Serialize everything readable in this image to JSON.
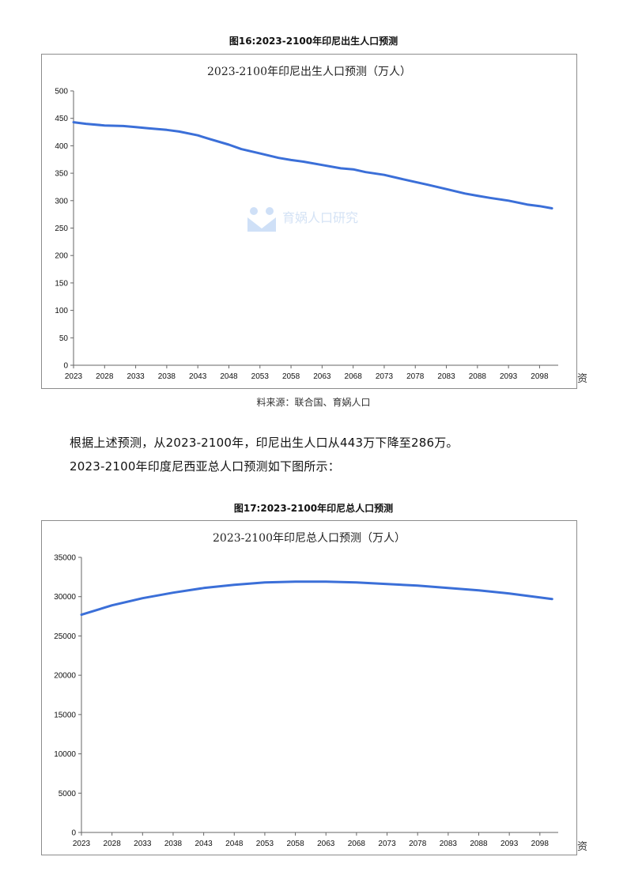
{
  "figure16": {
    "caption": "图16:2023-2100年印尼出生人口预测",
    "side_char": "资",
    "watermark_text": "育娲人口研究"
  },
  "source": "料来源：联合国、育娲人口",
  "paragraph": {
    "line1": "根据上述预测，从2023-2100年，印尼出生人口从443万下降至286万。",
    "line2": "2023-2100年印度尼西亚总人口预测如下图所示："
  },
  "figure17": {
    "caption": "图17:2023-2100年印尼总人口预测",
    "side_char": "资"
  },
  "colors": {
    "series": "#3b6fd8",
    "axis": "#666666",
    "border": "#8c8c8c"
  },
  "chart_data": [
    {
      "type": "line",
      "title": "2023-2100年印尼出生人口预测（万人）",
      "xlabel": "",
      "ylabel": "",
      "ylim": [
        0,
        500
      ],
      "yticks": [
        0,
        50,
        100,
        150,
        200,
        250,
        300,
        350,
        400,
        450,
        500
      ],
      "xticks": [
        "2023",
        "2028",
        "2033",
        "2038",
        "2043",
        "2048",
        "2053",
        "2058",
        "2063",
        "2068",
        "2073",
        "2078",
        "2083",
        "2088",
        "2093",
        "2098"
      ],
      "xlim": [
        2023,
        2101
      ],
      "grid": false,
      "legend": "none",
      "series": [
        {
          "x": [
            2023,
            2025,
            2028,
            2031,
            2033,
            2035,
            2038,
            2040,
            2043,
            2045,
            2048,
            2050,
            2053,
            2056,
            2058,
            2060,
            2063,
            2066,
            2068,
            2070,
            2073,
            2076,
            2078,
            2080,
            2083,
            2086,
            2088,
            2090,
            2093,
            2096,
            2098,
            2100
          ],
          "values": [
            443,
            440,
            437,
            436,
            434,
            432,
            429,
            426,
            419,
            412,
            402,
            394,
            386,
            378,
            374,
            371,
            365,
            359,
            357,
            352,
            347,
            339,
            334,
            329,
            321,
            313,
            309,
            305,
            300,
            293,
            290,
            286
          ]
        }
      ]
    },
    {
      "type": "line",
      "title": "2023-2100年印尼总人口预测（万人）",
      "xlabel": "",
      "ylabel": "",
      "ylim": [
        0,
        35000
      ],
      "yticks": [
        0,
        5000,
        10000,
        15000,
        20000,
        25000,
        30000,
        35000
      ],
      "xticks": [
        "2023",
        "2028",
        "2033",
        "2038",
        "2043",
        "2048",
        "2053",
        "2058",
        "2063",
        "2068",
        "2073",
        "2078",
        "2083",
        "2088",
        "2093",
        "2098"
      ],
      "xlim": [
        2023,
        2101
      ],
      "grid": false,
      "legend": "none",
      "series": [
        {
          "x": [
            2023,
            2028,
            2033,
            2038,
            2043,
            2048,
            2053,
            2058,
            2063,
            2068,
            2073,
            2078,
            2083,
            2088,
            2093,
            2098,
            2100
          ],
          "values": [
            27700,
            28900,
            29800,
            30500,
            31100,
            31500,
            31800,
            31900,
            31900,
            31800,
            31600,
            31400,
            31100,
            30800,
            30400,
            29900,
            29700
          ]
        }
      ]
    }
  ]
}
